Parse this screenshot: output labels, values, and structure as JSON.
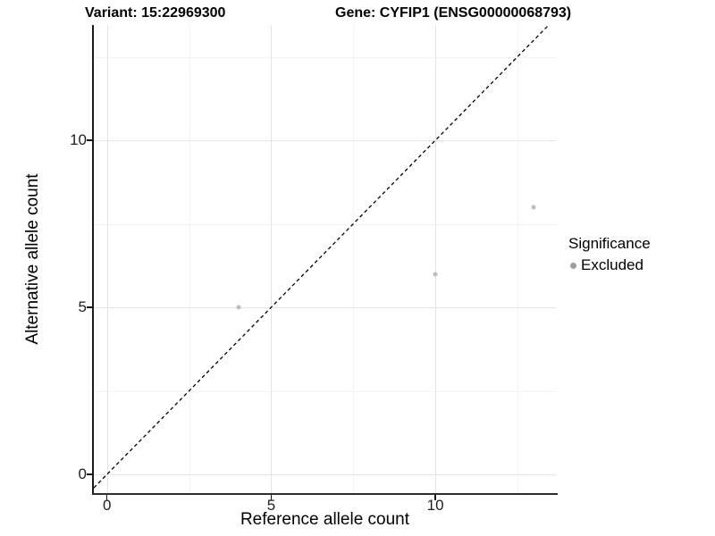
{
  "chart_data": {
    "type": "scatter",
    "title_left": "Variant: 15:22969300",
    "title_right": "Gene: CYFIP1 (ENSG00000068793)",
    "xlabel": "Reference allele count",
    "ylabel": "Alternative allele count",
    "xlim": [
      -0.4,
      13.67
    ],
    "ylim": [
      -0.56,
      13.45
    ],
    "x_major_ticks": [
      0,
      5,
      10
    ],
    "y_major_ticks": [
      0,
      5,
      10
    ],
    "x_minor_ticks": [
      2.5,
      7.5,
      12.5
    ],
    "y_minor_ticks": [
      2.5,
      7.5,
      12.5
    ],
    "grid": true,
    "series": [
      {
        "name": "Excluded",
        "color": "#bdbdbd",
        "points": [
          {
            "x": 4,
            "y": 5
          },
          {
            "x": 10,
            "y": 6
          },
          {
            "x": 13,
            "y": 8
          }
        ]
      }
    ],
    "reference_line": {
      "slope": 1,
      "intercept": 0,
      "style": "dashed",
      "color": "#000000"
    },
    "legend": {
      "title": "Significance",
      "position": "right",
      "items": [
        {
          "label": "Excluded",
          "color": "#9e9e9e"
        }
      ]
    }
  },
  "colors": {
    "background": "#ffffff",
    "axis_line": "#1a1a1a",
    "tick_label": "#1f1f1f",
    "grid_major": "#e4e4e4",
    "grid_minor": "#f2f2f2"
  }
}
